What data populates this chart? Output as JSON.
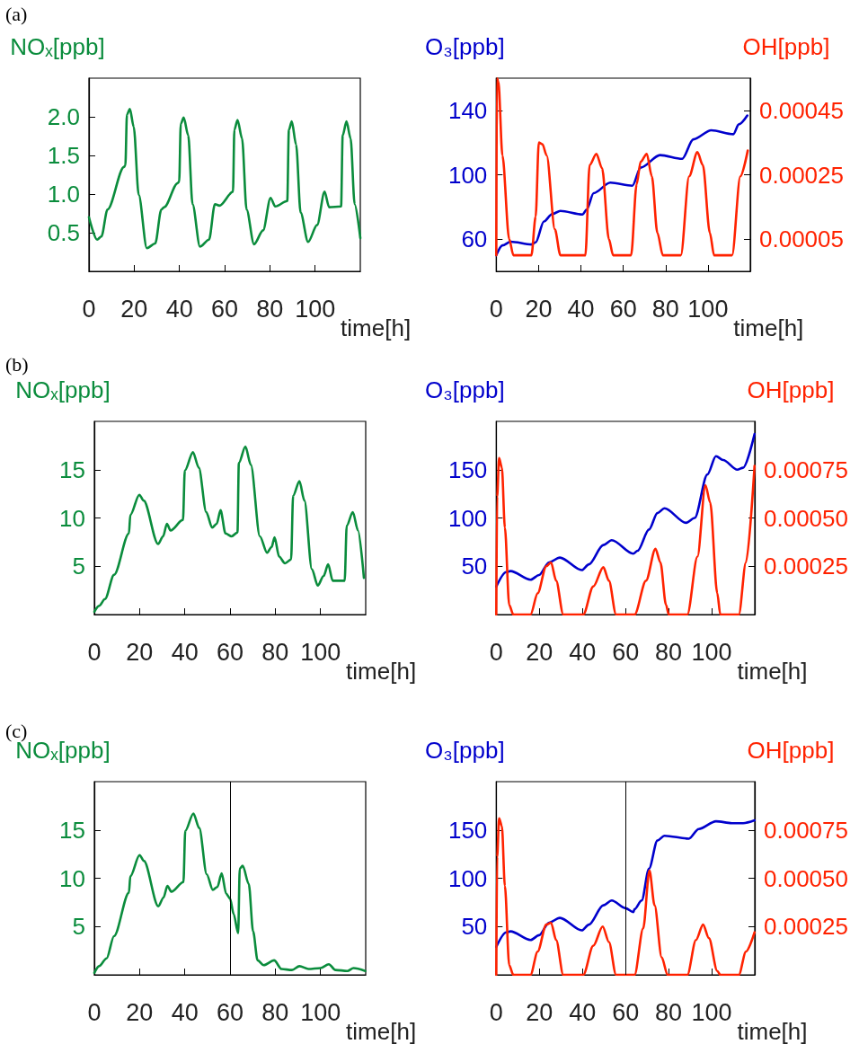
{
  "chart_data": [
    {
      "type": "line",
      "annotations": [
        "(a)"
      ],
      "ylabel": "NOₓ[ppb]",
      "xlabel": "time[h]",
      "grid": false,
      "marker": "none",
      "line_style": "solid",
      "xlim": [
        0,
        120
      ],
      "xticks": [
        0,
        20,
        40,
        60,
        80,
        100
      ],
      "ylim": [
        0,
        2.5
      ],
      "yticks": [
        {
          "value": 0.5,
          "label": "0.5"
        },
        {
          "value": 1,
          "label": "1.0"
        },
        {
          "value": 1.5,
          "label": "1.5"
        },
        {
          "value": 2,
          "label": "2.0"
        }
      ],
      "series": [
        {
          "color": "#0a8c3c",
          "x": [
            0,
            3.6,
            5.5,
            8.2,
            15.5,
            16.1,
            16.8,
            18.1,
            19.8,
            22,
            25.6,
            29.3,
            32,
            33.3,
            39.2,
            39.9,
            40.6,
            41.9,
            43.9,
            45.8,
            49.1,
            53.1,
            55.7,
            57.7,
            63.7,
            64.3,
            65.7,
            67.7,
            69.7,
            73,
            77,
            80.3,
            82.4,
            87.7,
            88.4,
            89.7,
            91.6,
            93.6,
            96.9,
            100.9,
            104.2,
            106.2,
            111.5,
            112.2,
            113.9,
            115.7,
            117.5,
            120
          ],
          "values": [
            0.7,
            0.41,
            0.45,
            0.8,
            1.35,
            1.37,
            2.03,
            2.1,
            1.87,
            0.99,
            0.3,
            0.36,
            0.8,
            0.83,
            1.14,
            1.16,
            1.91,
            1.99,
            1.76,
            0.87,
            0.32,
            0.41,
            0.87,
            0.85,
            1.03,
            1.83,
            1.96,
            1.72,
            0.8,
            0.35,
            0.53,
            0.95,
            0.84,
            0.91,
            1.83,
            1.94,
            1.64,
            0.76,
            0.38,
            0.6,
            1.03,
            0.83,
            0.84,
            1.76,
            1.94,
            1.72,
            0.87,
            0.43
          ]
        }
      ]
    },
    {
      "type": "line",
      "ylabel": "O₃[ppb]",
      "y2label": "OH[ppb]",
      "xlabel": "time[h]",
      "grid": false,
      "marker": "none",
      "line_style": "solid",
      "xlim": [
        0,
        120
      ],
      "xticks": [
        0,
        20,
        40,
        60,
        80,
        100
      ],
      "ylim": [
        40,
        160
      ],
      "yticks": [
        60,
        100,
        140
      ],
      "y2lim": [
        -5e-05,
        0.00055
      ],
      "y2ticks": [
        {
          "value": 5e-05,
          "label": "0.00005"
        },
        {
          "value": 0.00025,
          "label": "0.00025"
        },
        {
          "value": 0.00045,
          "label": "0.00045"
        }
      ],
      "series": [
        {
          "color": "#0000cc",
          "x": [
            0,
            2.9,
            6.8,
            16.6,
            18.6,
            22.5,
            26.4,
            30.3,
            40.8,
            42.7,
            46,
            53.9,
            64.3,
            68.2,
            77.4,
            87.8,
            93.1,
            101.6,
            112,
            114.6,
            118.6
          ],
          "values": [
            50,
            56.1,
            58.4,
            56.7,
            58,
            71,
            75.6,
            77.5,
            75.3,
            78.4,
            88.6,
            95.1,
            93.2,
            104.4,
            112.2,
            109.9,
            122,
            127.6,
            125.2,
            131.3,
            136.8
          ]
        },
        {
          "color": "#ff2200",
          "axis": "y2",
          "x": [
            0,
            0.3,
            1,
            2.9,
            6.1,
            8.1,
            16.6,
            18.6,
            20.1,
            21.8,
            23.8,
            27.7,
            30.3,
            42.1,
            44.1,
            47.3,
            50,
            53.2,
            55.2,
            63.7,
            66.3,
            68.2,
            71.1,
            73.5,
            76.1,
            78.7,
            87.2,
            91.1,
            95,
            97.6,
            100.9,
            102.9,
            111.4,
            115.3,
            118.8
          ],
          "values": [
            0,
            0.00055,
            0.00054,
            0.00031,
            5e-05,
            0,
            0,
            0.00012,
            0.00035,
            0.000345,
            0.00031,
            8e-05,
            0,
            0,
            0.00028,
            0.000315,
            0.00027,
            5e-05,
            0,
            0,
            0.00022,
            0.00029,
            0.000315,
            0.000245,
            7e-05,
            0,
            0,
            0.000245,
            0.00032,
            0.00028,
            7e-05,
            0,
            0,
            0.000245,
            0.000325
          ]
        }
      ]
    },
    {
      "type": "line",
      "annotations": [
        "(b)"
      ],
      "ylabel": "NOₓ[ppb]",
      "xlabel": "time[h]",
      "grid": false,
      "marker": "none",
      "line_style": "solid",
      "xlim": [
        0,
        120
      ],
      "xticks": [
        0,
        20,
        40,
        60,
        80,
        100
      ],
      "ylim": [
        0,
        20
      ],
      "yticks": [
        5,
        10,
        15
      ],
      "series": [
        {
          "color": "#0a8c3c",
          "x": [
            0,
            2.1,
            4.7,
            8.7,
            15.3,
            15.9,
            19.9,
            21.8,
            28.2,
            30.4,
            32.1,
            33.7,
            39.2,
            40,
            43.6,
            46.2,
            49.5,
            52.1,
            54.1,
            55.8,
            58,
            60.7,
            63.3,
            63.9,
            66.8,
            69.2,
            73.2,
            76.4,
            78.4,
            79.7,
            81.7,
            84.3,
            87,
            87.9,
            90.7,
            92.9,
            96.2,
            98.8,
            101.4,
            103.4,
            105.4,
            110.7,
            111.6,
            114.3,
            116.6,
            119.2
          ],
          "values": [
            0.3,
            0.9,
            1.6,
            4.1,
            8.4,
            10.3,
            12.4,
            11.8,
            7.3,
            8.1,
            9.4,
            8.7,
            9.8,
            14.9,
            16.8,
            15.2,
            10.6,
            9,
            9.4,
            10.8,
            8.4,
            8.1,
            8.5,
            15.7,
            17.4,
            15.5,
            8.1,
            6.4,
            7,
            8,
            6,
            5.3,
            5.7,
            12.3,
            13.8,
            11.8,
            4.7,
            3,
            4,
            5.2,
            3.5,
            3.5,
            9.2,
            10.6,
            8.7,
            3.8
          ]
        }
      ]
    },
    {
      "type": "line",
      "ylabel": "O₃[ppb]",
      "y2label": "OH[ppb]",
      "xlabel": "time[h]",
      "grid": false,
      "marker": "none",
      "line_style": "solid",
      "xlim": [
        0,
        120
      ],
      "xticks": [
        0,
        20,
        40,
        60,
        80,
        100
      ],
      "ylim": [
        0,
        200
      ],
      "yticks": [
        50,
        100,
        150
      ],
      "y2lim": [
        0,
        0.001
      ],
      "y2ticks": [
        {
          "value": 0.00025,
          "label": "0.00025"
        },
        {
          "value": 0.0005,
          "label": "0.00050"
        },
        {
          "value": 0.00075,
          "label": "0.00075"
        }
      ],
      "series": [
        {
          "color": "#0000cc",
          "x": [
            0,
            4.6,
            6.6,
            15.9,
            19.9,
            24.5,
            29.5,
            39.7,
            43,
            49.7,
            53.6,
            63.6,
            65.6,
            70.9,
            74.8,
            78.1,
            88.1,
            92.1,
            98,
            102,
            105.3,
            111.9,
            114.6,
            119.9
          ],
          "values": [
            29,
            44,
            45,
            36,
            41,
            54,
            59,
            46,
            52,
            72,
            77,
            63,
            66,
            88,
            105,
            110,
            95,
            100,
            145,
            164,
            160,
            150,
            152,
            187
          ]
        },
        {
          "color": "#ff2200",
          "axis": "y2",
          "x": [
            0,
            0.4,
            1.3,
            2.6,
            4,
            6,
            7.9,
            15.9,
            19.2,
            23.2,
            25.4,
            27.8,
            31.1,
            40.4,
            45,
            49.7,
            52.3,
            55.6,
            64.2,
            69.5,
            73.9,
            76.2,
            78.8,
            80.1,
            88.7,
            93.4,
            97.1,
            99.3,
            102.6,
            104,
            112.6,
            115.9,
            119.9
          ],
          "values": [
            0,
            0.00061,
            0.00081,
            0.00076,
            0.00045,
            5e-05,
            0,
            0,
            0.00011,
            0.00025,
            0.00027,
            0.000175,
            0,
            0,
            0.000145,
            0.000245,
            0.000175,
            0,
            0,
            0.000175,
            0.00034,
            0.00027,
            5e-05,
            0,
            0,
            0.0003,
            0.00067,
            0.00058,
            0.00011,
            0,
            0,
            0.00027,
            0.00077
          ]
        }
      ]
    },
    {
      "type": "line",
      "annotations": [
        "(c)"
      ],
      "ylabel": "NOₓ[ppb]",
      "xlabel": "time[h]",
      "grid": false,
      "marker": "none",
      "line_style": "solid",
      "xlim": [
        0,
        120
      ],
      "xticks": [
        0,
        20,
        40,
        60,
        80,
        100
      ],
      "ylim": [
        0,
        20
      ],
      "yticks": [
        5,
        10,
        15
      ],
      "ref_lines": [
        {
          "axis": "x",
          "value": 60,
          "color": "#000000"
        }
      ],
      "series": [
        {
          "color": "#0a8c3c",
          "x": [
            0,
            2.1,
            5.4,
            8.7,
            15.3,
            15.9,
            20,
            21.9,
            28.3,
            30.6,
            32.3,
            34.1,
            39.4,
            40.2,
            43.8,
            46.4,
            49.7,
            52.4,
            54.4,
            56.3,
            58.3,
            60,
            61.6,
            63.6,
            64.3,
            65.6,
            68.3,
            70.2,
            72.2,
            74.9,
            79.5,
            82.8,
            87.4,
            90.7,
            94.7,
            100,
            103.7,
            106.6,
            111.9,
            114.6,
            119.8
          ],
          "values": [
            0.2,
            0.9,
            1.7,
            4,
            8.5,
            10.2,
            12.4,
            11.8,
            7.1,
            8,
            9.2,
            8.6,
            9.6,
            14.9,
            16.7,
            15.2,
            10.4,
            8.8,
            9.1,
            10.5,
            8.4,
            7.9,
            6.3,
            4.3,
            11,
            11.3,
            9.4,
            4.5,
            1.5,
            1,
            1.5,
            0.6,
            0.5,
            0.9,
            0.6,
            0.7,
            1.1,
            0.5,
            0.4,
            0.7,
            0.4
          ]
        }
      ]
    },
    {
      "type": "line",
      "ylabel": "O₃[ppb]",
      "y2label": "OH[ppb]",
      "xlabel": "time[h]",
      "grid": false,
      "marker": "none",
      "line_style": "solid",
      "xlim": [
        0,
        120
      ],
      "xticks": [
        0,
        20,
        40,
        60,
        80,
        100
      ],
      "ylim": [
        0,
        200
      ],
      "yticks": [
        50,
        100,
        150
      ],
      "y2lim": [
        0,
        0.001
      ],
      "y2ticks": [
        {
          "value": 0.00025,
          "label": "0.00025"
        },
        {
          "value": 0.0005,
          "label": "0.00050"
        },
        {
          "value": 0.00075,
          "label": "0.00075"
        }
      ],
      "ref_lines": [
        {
          "axis": "x",
          "value": 60,
          "color": "#000000"
        }
      ],
      "series": [
        {
          "color": "#0000cc",
          "x": [
            0,
            4.6,
            6.6,
            15.9,
            19.9,
            24.5,
            29.5,
            39.7,
            43,
            49.7,
            53.6,
            60,
            63.6,
            64.2,
            67.5,
            70.9,
            74.8,
            78.1,
            89.4,
            94,
            102,
            109.3,
            114.6,
            119.9
          ],
          "values": [
            29,
            44,
            45,
            36,
            41,
            54,
            59,
            46,
            52,
            72,
            77,
            69,
            65,
            68,
            77,
            110,
            139,
            144,
            141,
            151,
            159,
            157,
            157,
            160
          ]
        },
        {
          "color": "#ff2200",
          "axis": "y2",
          "x": [
            0,
            0.4,
            1.3,
            2.6,
            4,
            6,
            7.9,
            15.9,
            19.2,
            23.2,
            25.4,
            27.8,
            31.1,
            40.4,
            45,
            49.4,
            52.3,
            55.6,
            64.2,
            68.2,
            71.1,
            73.5,
            76.8,
            79.5,
            88.7,
            92.7,
            96,
            98.7,
            102.6,
            104,
            112.6,
            115.9,
            119.9
          ],
          "values": [
            0,
            0.00061,
            0.00081,
            0.00077,
            0.00046,
            5e-05,
            0,
            0,
            0.00012,
            0.00026,
            0.00027,
            0.00018,
            0,
            0,
            0.00015,
            0.00025,
            0.00017,
            0,
            0,
            0.00024,
            0.00054,
            0.00036,
            9e-05,
            0,
            0,
            0.00018,
            0.00026,
            0.00019,
            2e-05,
            0,
            0,
            0.00012,
            0.00022
          ]
        }
      ]
    }
  ]
}
